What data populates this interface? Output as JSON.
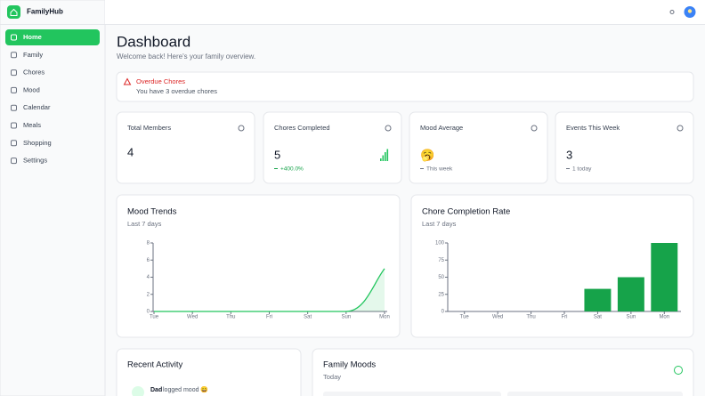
{
  "sidebar": {
    "brand": "FamilyHub",
    "nav": [
      "Home",
      "Family",
      "Chores",
      "Mood",
      "Calendar",
      "Meals",
      "Shopping",
      "Settings"
    ],
    "active": 0
  },
  "header": {
    "title": "Dashboard",
    "subtitle": "Welcome back! Here's your family overview."
  },
  "alert": {
    "title": "Overdue Chores",
    "message": "You have 3 overdue chores"
  },
  "stats": [
    {
      "title": "Total Members",
      "value": 4
    },
    {
      "title": "Chores Completed",
      "value": 5,
      "note": "+400.0%"
    },
    {
      "title": "Mood Average",
      "value": "🥱",
      "note": "This week"
    },
    {
      "title": "Events This Week",
      "value": 3,
      "note": "1 today"
    }
  ],
  "chart_data": [
    {
      "type": "line",
      "title": "Mood Trends",
      "subtitle": "Last 7 days",
      "categories": [
        "Tue",
        "Wed",
        "Thu",
        "Fri",
        "Sat",
        "Sun",
        "Mon"
      ],
      "values": [
        0,
        0,
        0,
        0,
        0,
        0,
        5
      ],
      "color": "#22c55e",
      "ylim": [
        0,
        8
      ],
      "yticks": [
        0,
        2,
        4,
        6,
        8
      ]
    },
    {
      "type": "bar",
      "title": "Chore Completion Rate",
      "subtitle": "Last 7 days",
      "categories": [
        "Tue",
        "Wed",
        "Thu",
        "Fri",
        "Sat",
        "Sun",
        "Mon"
      ],
      "values": [
        0,
        0,
        0,
        0,
        33,
        50,
        100
      ],
      "color": "#16a34a",
      "ylim": [
        0,
        100
      ],
      "yticks": [
        0,
        25,
        50,
        75,
        100
      ]
    }
  ],
  "activity": {
    "title": "Recent Activity",
    "items": [
      {
        "user": "Dad",
        "action": "logged mood 😄"
      }
    ]
  },
  "moods": {
    "title": "Family Moods",
    "subtitle": "Today"
  }
}
